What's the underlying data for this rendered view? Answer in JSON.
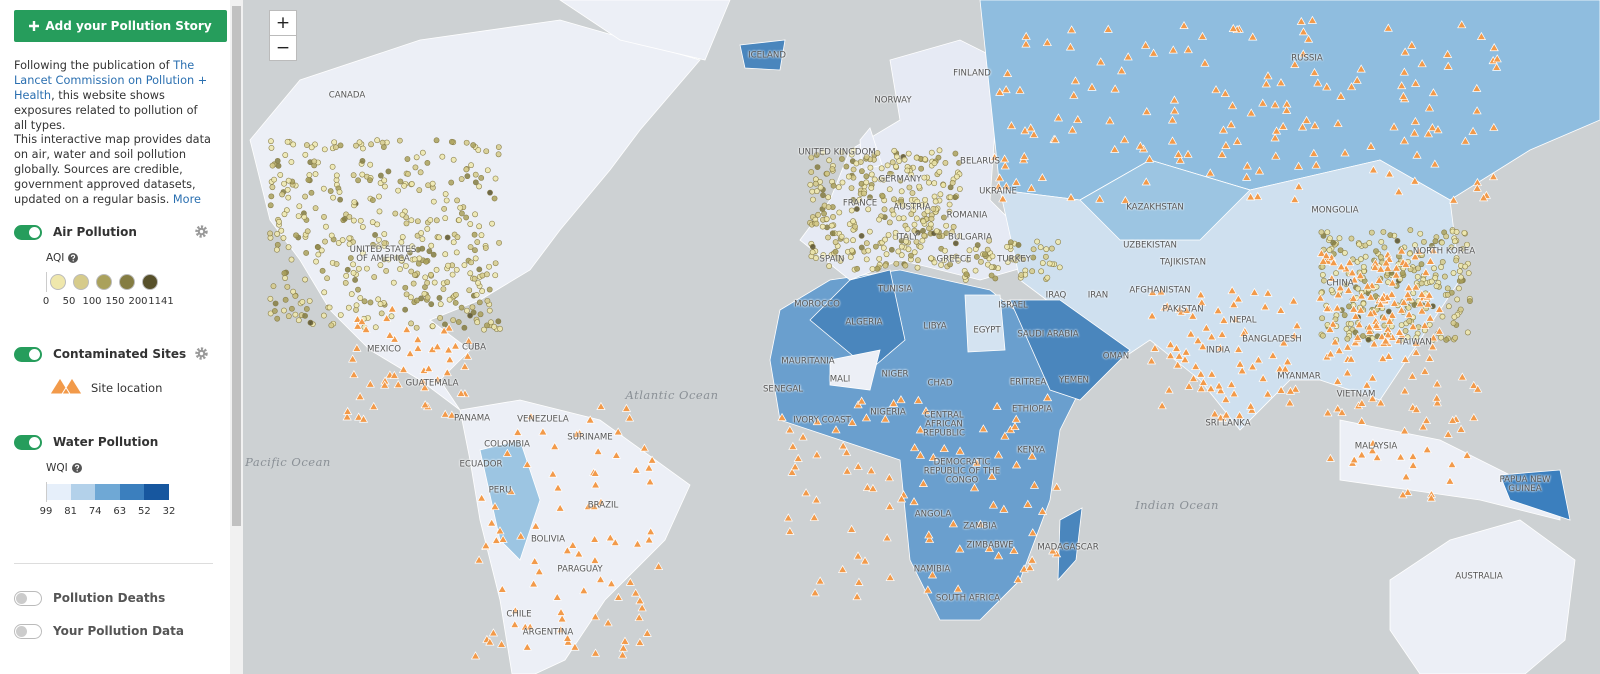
{
  "sidebar": {
    "button": "Add your Pollution Story",
    "intro": {
      "before": "Following the publication of ",
      "link": "The Lancet Commission on Pollution + Health",
      "after": ", this website shows exposures related to pollution of all types."
    },
    "about": {
      "text": "This interactive map provides data on air, water and soil pollution globally. Sources are credible, government approved datasets, updated on a regular basis.",
      "link": "More"
    },
    "layers": {
      "air": {
        "name": "Air Pollution",
        "on": true,
        "legend_title": "AQI",
        "colors": [
          "#efe7ac",
          "#d6cb8b",
          "#aaa15c",
          "#847c42",
          "#57502a"
        ],
        "labels": [
          "0",
          "50",
          "100",
          "150",
          "200",
          "1141"
        ]
      },
      "sites": {
        "name": "Contaminated Sites",
        "on": true,
        "legend_label": "Site location"
      },
      "water": {
        "name": "Water Pollution",
        "on": true,
        "legend_title": "WQI",
        "colors": [
          "#e6effa",
          "#b3d1ea",
          "#6fa8d5",
          "#3b7fbe",
          "#17579f"
        ],
        "labels": [
          "99",
          "81",
          "74",
          "63",
          "52",
          "32"
        ]
      },
      "deaths": {
        "name": "Pollution Deaths",
        "on": false
      },
      "user": {
        "name": "Your Pollution Data",
        "on": false
      }
    }
  },
  "map": {
    "zoom_in": "+",
    "zoom_out": "−",
    "countries": [
      "CANADA",
      "UNITED STATES OF AMERICA",
      "MEXICO",
      "CUBA",
      "GUATEMALA",
      "PANAMA",
      "VENEZUELA",
      "COLOMBIA",
      "SURINAME",
      "ECUADOR",
      "PERU",
      "BRAZIL",
      "BOLIVIA",
      "PARAGUAY",
      "CHILE",
      "ARGENTINA",
      "ICELAND",
      "FINLAND",
      "NORWAY",
      "UNITED KINGDOM",
      "BELARUS",
      "GERMANY",
      "UKRAINE",
      "FRANCE",
      "AUSTRIA",
      "ROMANIA",
      "ITALY",
      "BULGARIA",
      "SPAIN",
      "GREECE",
      "TURKEY",
      "MOROCCO",
      "TUNISIA",
      "ALGERIA",
      "LIBYA",
      "EGYPT",
      "ISRAEL",
      "IRAQ",
      "IRAN",
      "SAUDI ARABIA",
      "OMAN",
      "YEMEN",
      "MAURITANIA",
      "MALI",
      "NIGER",
      "CHAD",
      "ERITREA",
      "SENEGAL",
      "NIGERIA",
      "IVORY COAST",
      "CENTRAL AFRICAN REPUBLIC",
      "ETHIOPIA",
      "KENYA",
      "DEMOCRATIC REPUBLIC OF THE CONGO",
      "ANGOLA",
      "ZAMBIA",
      "ZIMBABWE",
      "MADAGASCAR",
      "NAMIBIA",
      "SOUTH AFRICA",
      "RUSSIA",
      "KAZAKHSTAN",
      "MONGOLIA",
      "UZBEKISTAN",
      "TAJIKISTAN",
      "AFGHANISTAN",
      "PAKISTAN",
      "NEPAL",
      "INDIA",
      "BANGLADESH",
      "CHINA",
      "NORTH KOREA",
      "TAIWAN",
      "MYANMAR",
      "VIETNAM",
      "SRI LANKA",
      "MALAYSIA",
      "PAPUA NEW GUINEA",
      "AUSTRALIA"
    ],
    "oceans": [
      "Atlantic Ocean",
      "Pacific Ocean",
      "Indian Ocean"
    ]
  }
}
